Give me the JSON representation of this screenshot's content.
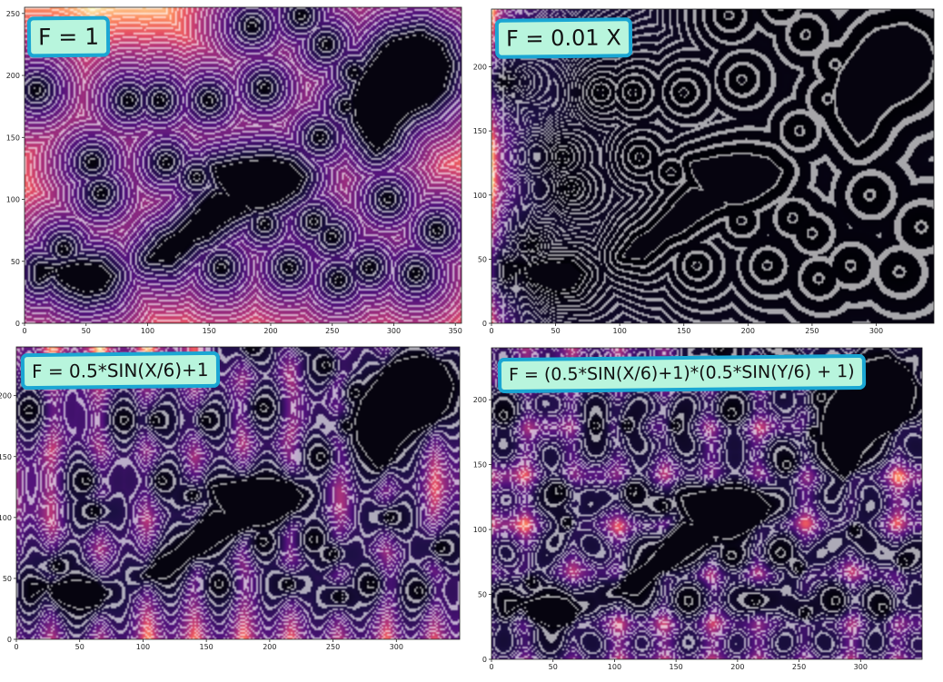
{
  "colors": {
    "obstacle": "#06040f",
    "contour": "#ffffff",
    "box_fill": "#b8f5dd",
    "box_border": "#1aa6d3",
    "cmap_low": "#0a0a2e",
    "cmap_mid": "#b83a74",
    "cmap_high": "#fcd257"
  },
  "chart_data": [
    {
      "type": "heatmap",
      "title": "F = 1",
      "xlabel": "",
      "ylabel": "",
      "xlim": [
        0,
        355
      ],
      "ylim": [
        0,
        255
      ],
      "xticks": [
        "0",
        "50",
        "100",
        "150",
        "200",
        "250",
        "300",
        "350"
      ],
      "yticks": [
        "0",
        "50",
        "100",
        "150",
        "200",
        "250"
      ],
      "speed_function": "uniform",
      "contours": "white iso-distance lines",
      "grid": false
    },
    {
      "type": "heatmap",
      "title": "F = 0.01 X",
      "xlabel": "",
      "ylabel": "",
      "xlim": [
        0,
        345
      ],
      "ylim": [
        0,
        245
      ],
      "xticks": [
        "0",
        "50",
        "100",
        "150",
        "200",
        "250",
        "300"
      ],
      "yticks": [
        "0",
        "50",
        "100",
        "150",
        "200"
      ],
      "speed_function": "linear in x",
      "contours": "white iso-distance lines",
      "grid": false
    },
    {
      "type": "heatmap",
      "title": "F = 0.5*SIN(X/6)+1",
      "xlabel": "",
      "ylabel": "",
      "xlim": [
        0,
        350
      ],
      "ylim": [
        0,
        240
      ],
      "xticks": [
        "0",
        "50",
        "100",
        "150",
        "200",
        "250",
        "300"
      ],
      "yticks": [
        "0",
        "50",
        "100",
        "150",
        "200"
      ],
      "speed_function": "sinusoidal in x",
      "contours": "white iso-distance lines",
      "grid": false
    },
    {
      "type": "heatmap",
      "title": "F = (0.5*SIN(X/6)+1)*(0.5*SIN(Y/6) + 1)",
      "xlabel": "",
      "ylabel": "",
      "xlim": [
        0,
        350
      ],
      "ylim": [
        0,
        240
      ],
      "xticks": [
        "0",
        "50",
        "100",
        "150",
        "200",
        "250",
        "300"
      ],
      "yticks": [
        "0",
        "50",
        "100",
        "150",
        "200"
      ],
      "speed_function": "sinusoidal in x and y",
      "contours": "white iso-distance lines",
      "grid": false
    }
  ],
  "labels": {
    "panel1": "F = 1",
    "panel2": "F = 0.01 X",
    "panel3": "F = 0.5*SIN(X/6)+1",
    "panel4": "F = (0.5*SIN(X/6)+1)*(0.5*SIN(Y/6) + 1)"
  }
}
